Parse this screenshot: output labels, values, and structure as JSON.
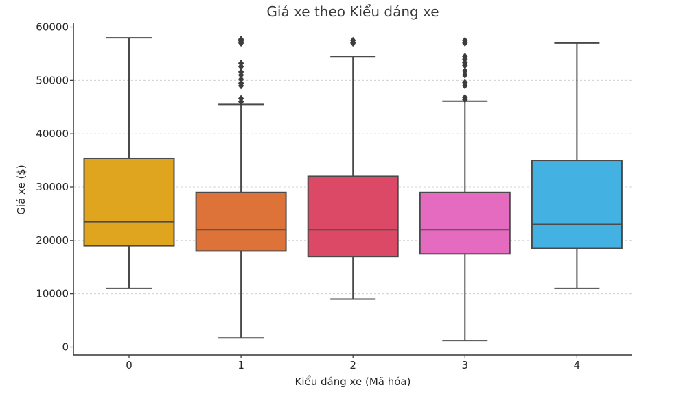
{
  "chart_data": {
    "type": "box",
    "title": "Giá xe theo Kiểu dáng xe",
    "xlabel": "Kiểu dáng xe (Mã hóa)",
    "ylabel": "Giá xe ($)",
    "ylim": [
      -1500,
      61000
    ],
    "yticks": [
      0,
      10000,
      20000,
      30000,
      40000,
      50000,
      60000
    ],
    "grid": "horizontal-dashed",
    "categories": [
      "0",
      "1",
      "2",
      "3",
      "4"
    ],
    "series": [
      {
        "category": "0",
        "color": "#E0A51E",
        "whisker_low": 11000,
        "q1": 19000,
        "median": 23500,
        "q3": 35400,
        "whisker_high": 58000,
        "outliers": []
      },
      {
        "category": "1",
        "color": "#DE733A",
        "whisker_low": 1700,
        "q1": 18000,
        "median": 22000,
        "q3": 29000,
        "whisker_high": 45500,
        "outliers": [
          46000,
          46600,
          49000,
          49500,
          50200,
          51000,
          51600,
          52600,
          53200,
          57000,
          57400,
          57700
        ]
      },
      {
        "category": "2",
        "color": "#DB4966",
        "whisker_low": 9000,
        "q1": 17000,
        "median": 22000,
        "q3": 32000,
        "whisker_high": 54500,
        "outliers": [
          57000,
          57500
        ]
      },
      {
        "category": "3",
        "color": "#E56BC0",
        "whisker_low": 1200,
        "q1": 17500,
        "median": 22000,
        "q3": 29000,
        "whisker_high": 46100,
        "outliers": [
          46400,
          46800,
          49000,
          49600,
          51000,
          51800,
          52800,
          53300,
          54000,
          54500,
          57000,
          57500
        ]
      },
      {
        "category": "4",
        "color": "#43B2E3",
        "whisker_low": 11000,
        "q1": 18500,
        "median": 23000,
        "q3": 35000,
        "whisker_high": 57000,
        "outliers": []
      }
    ]
  }
}
